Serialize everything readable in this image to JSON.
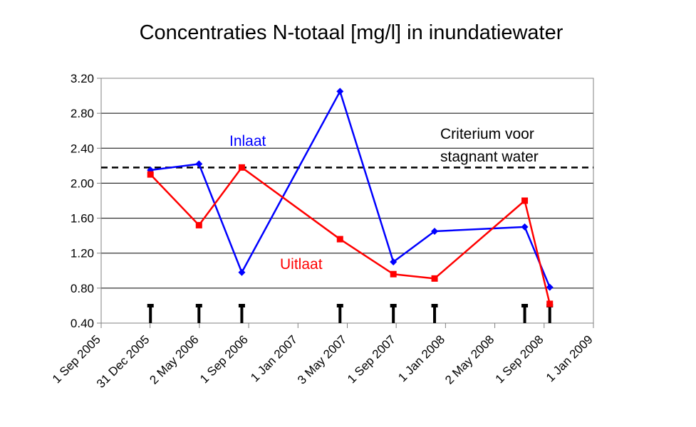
{
  "chart_data": {
    "type": "line",
    "title": "Concentraties N-totaal [mg/l] in inundatiewater",
    "xlabel": "",
    "ylabel": "",
    "ylim": [
      0.4,
      3.2
    ],
    "yticks": [
      "0.40",
      "0.80",
      "1.20",
      "1.60",
      "2.00",
      "2.40",
      "2.80",
      "3.20"
    ],
    "xlim": [
      "2005-09-01",
      "2009-01-01"
    ],
    "xticks": [
      {
        "date": "2005-09-01",
        "label": "1 Sep 2005"
      },
      {
        "date": "2005-12-31",
        "label": "31 Dec 2005"
      },
      {
        "date": "2006-05-02",
        "label": "2 May 2006"
      },
      {
        "date": "2006-09-01",
        "label": "1 Sep 2006"
      },
      {
        "date": "2007-01-01",
        "label": "1 Jan 2007"
      },
      {
        "date": "2007-05-03",
        "label": "3 May 2007"
      },
      {
        "date": "2007-09-01",
        "label": "1 Sep 2007"
      },
      {
        "date": "2008-01-01",
        "label": "1 Jan 2008"
      },
      {
        "date": "2008-05-02",
        "label": "2 May 2008"
      },
      {
        "date": "2008-09-01",
        "label": "1 Sep 2008"
      },
      {
        "date": "2009-01-01",
        "label": "1 Jan 2009"
      }
    ],
    "grid": true,
    "series": [
      {
        "name": "Inlaat",
        "color": "#0000FF",
        "marker": "diamond",
        "x": [
          "2006-01-01",
          "2006-05-01",
          "2006-08-15",
          "2007-04-15",
          "2007-08-25",
          "2007-12-05",
          "2008-07-15",
          "2008-09-15"
        ],
        "values": [
          2.15,
          2.22,
          0.98,
          3.05,
          1.1,
          1.45,
          1.5,
          0.81
        ]
      },
      {
        "name": "Uitlaat",
        "color": "#FF0000",
        "marker": "square",
        "x": [
          "2006-01-01",
          "2006-05-01",
          "2006-08-15",
          "2007-04-15",
          "2007-08-25",
          "2007-12-05",
          "2008-07-15",
          "2008-09-15"
        ],
        "values": [
          2.1,
          1.52,
          2.18,
          1.36,
          0.96,
          0.91,
          1.8,
          0.62
        ]
      }
    ],
    "reference_line": {
      "label": "Criterium voor stagnant water",
      "label_lines": [
        "Criterium voor",
        "stagnant water"
      ],
      "value": 2.18,
      "style": "dashed",
      "color": "#000000"
    },
    "event_marks": {
      "color": "#000000",
      "x": [
        "2006-01-01",
        "2006-05-01",
        "2006-08-15",
        "2007-04-15",
        "2007-08-25",
        "2007-12-05",
        "2008-07-15",
        "2008-09-15"
      ]
    }
  }
}
